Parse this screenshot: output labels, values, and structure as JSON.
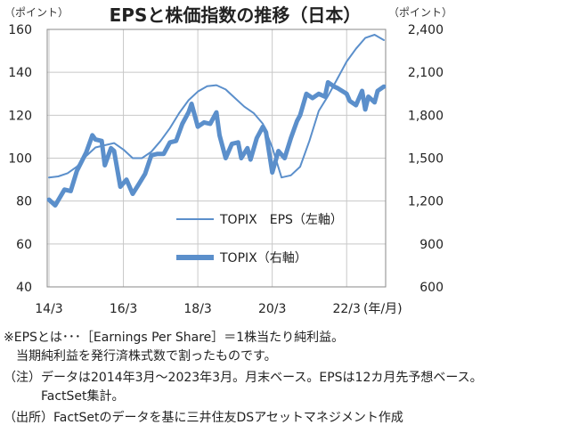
{
  "chart_data": {
    "type": "line",
    "title": "EPSと株価指数の推移（日本）",
    "left_unit_label": "（ポイント）",
    "right_unit_label": "（ポイント）",
    "x_unit_label": "(年/月)",
    "x_tick_labels": [
      "14/3",
      "16/3",
      "18/3",
      "20/3",
      "22/3"
    ],
    "x_range": [
      "2014-03",
      "2023-03"
    ],
    "left_axis": {
      "range": [
        40,
        160
      ],
      "ticks": [
        "40",
        "60",
        "80",
        "100",
        "120",
        "140",
        "160"
      ]
    },
    "right_axis": {
      "range": [
        600,
        2400
      ],
      "ticks": [
        "600",
        "900",
        "1,200",
        "1,500",
        "1,800",
        "2,100",
        "2,400"
      ]
    },
    "grid": true,
    "legend_position": "bottom-center",
    "series": [
      {
        "name": "TOPIX　EPS（左軸）",
        "axis": "left",
        "color": "#5B8FCB",
        "line": "thin",
        "points": [
          [
            "2014-03",
            91.0
          ],
          [
            "2014-06",
            91.5
          ],
          [
            "2014-09",
            93.0
          ],
          [
            "2014-12",
            96.0
          ],
          [
            "2015-03",
            101.0
          ],
          [
            "2015-06",
            105.0
          ],
          [
            "2015-09",
            106.0
          ],
          [
            "2015-12",
            107.0
          ],
          [
            "2016-03",
            104.0
          ],
          [
            "2016-06",
            100.0
          ],
          [
            "2016-09",
            100.0
          ],
          [
            "2016-12",
            103.0
          ],
          [
            "2017-03",
            108.0
          ],
          [
            "2017-06",
            114.0
          ],
          [
            "2017-09",
            121.0
          ],
          [
            "2017-12",
            127.0
          ],
          [
            "2018-03",
            131.0
          ],
          [
            "2018-06",
            133.5
          ],
          [
            "2018-09",
            134.0
          ],
          [
            "2018-12",
            132.0
          ],
          [
            "2019-03",
            128.0
          ],
          [
            "2019-06",
            124.0
          ],
          [
            "2019-09",
            121.0
          ],
          [
            "2019-12",
            116.0
          ],
          [
            "2020-03",
            105.0
          ],
          [
            "2020-06",
            91.0
          ],
          [
            "2020-09",
            92.0
          ],
          [
            "2020-12",
            96.0
          ],
          [
            "2021-03",
            108.0
          ],
          [
            "2021-06",
            122.0
          ],
          [
            "2021-09",
            129.0
          ],
          [
            "2021-12",
            137.0
          ],
          [
            "2022-03",
            145.0
          ],
          [
            "2022-06",
            151.0
          ],
          [
            "2022-09",
            156.0
          ],
          [
            "2022-12",
            157.5
          ],
          [
            "2023-03",
            155.0
          ]
        ]
      },
      {
        "name": "TOPIX（右軸）",
        "axis": "right",
        "color": "#5B8FCB",
        "line": "thick",
        "points": [
          [
            "2014-03",
            1210
          ],
          [
            "2014-05",
            1170
          ],
          [
            "2014-08",
            1280
          ],
          [
            "2014-10",
            1270
          ],
          [
            "2014-12",
            1410
          ],
          [
            "2015-03",
            1540
          ],
          [
            "2015-05",
            1660
          ],
          [
            "2015-06",
            1630
          ],
          [
            "2015-08",
            1620
          ],
          [
            "2015-09",
            1450
          ],
          [
            "2015-11",
            1570
          ],
          [
            "2015-12",
            1550
          ],
          [
            "2016-02",
            1300
          ],
          [
            "2016-04",
            1350
          ],
          [
            "2016-06",
            1250
          ],
          [
            "2016-08",
            1320
          ],
          [
            "2016-10",
            1390
          ],
          [
            "2016-12",
            1520
          ],
          [
            "2017-02",
            1530
          ],
          [
            "2017-04",
            1530
          ],
          [
            "2017-06",
            1610
          ],
          [
            "2017-08",
            1620
          ],
          [
            "2017-10",
            1740
          ],
          [
            "2017-12",
            1820
          ],
          [
            "2018-01",
            1880
          ],
          [
            "2018-03",
            1720
          ],
          [
            "2018-05",
            1750
          ],
          [
            "2018-07",
            1740
          ],
          [
            "2018-09",
            1820
          ],
          [
            "2018-10",
            1660
          ],
          [
            "2018-12",
            1500
          ],
          [
            "2019-02",
            1600
          ],
          [
            "2019-04",
            1610
          ],
          [
            "2019-05",
            1500
          ],
          [
            "2019-07",
            1570
          ],
          [
            "2019-08",
            1490
          ],
          [
            "2019-10",
            1640
          ],
          [
            "2019-12",
            1720
          ],
          [
            "2020-01",
            1680
          ],
          [
            "2020-03",
            1400
          ],
          [
            "2020-05",
            1550
          ],
          [
            "2020-07",
            1500
          ],
          [
            "2020-09",
            1640
          ],
          [
            "2020-11",
            1760
          ],
          [
            "2020-12",
            1800
          ],
          [
            "2021-02",
            1950
          ],
          [
            "2021-04",
            1920
          ],
          [
            "2021-06",
            1950
          ],
          [
            "2021-08",
            1930
          ],
          [
            "2021-09",
            2030
          ],
          [
            "2021-11",
            2000
          ],
          [
            "2021-12",
            1990
          ],
          [
            "2022-03",
            1950
          ],
          [
            "2022-04",
            1900
          ],
          [
            "2022-06",
            1870
          ],
          [
            "2022-08",
            1970
          ],
          [
            "2022-09",
            1840
          ],
          [
            "2022-10",
            1930
          ],
          [
            "2022-12",
            1890
          ],
          [
            "2023-01",
            1970
          ],
          [
            "2023-03",
            2000
          ]
        ]
      }
    ]
  },
  "notes": [
    "※EPSとは･･･［Earnings Per Share］＝1株当たり純利益。",
    "　当期純利益を発行済株式数で割ったものです。",
    "（注）データは2014年3月～2023年3月。月末ベース。EPSは12カ月先予想ベース。",
    "　　　FactSet集計。",
    "（出所）FactSetのデータを基に三井住友DSアセットマネジメント作成"
  ]
}
